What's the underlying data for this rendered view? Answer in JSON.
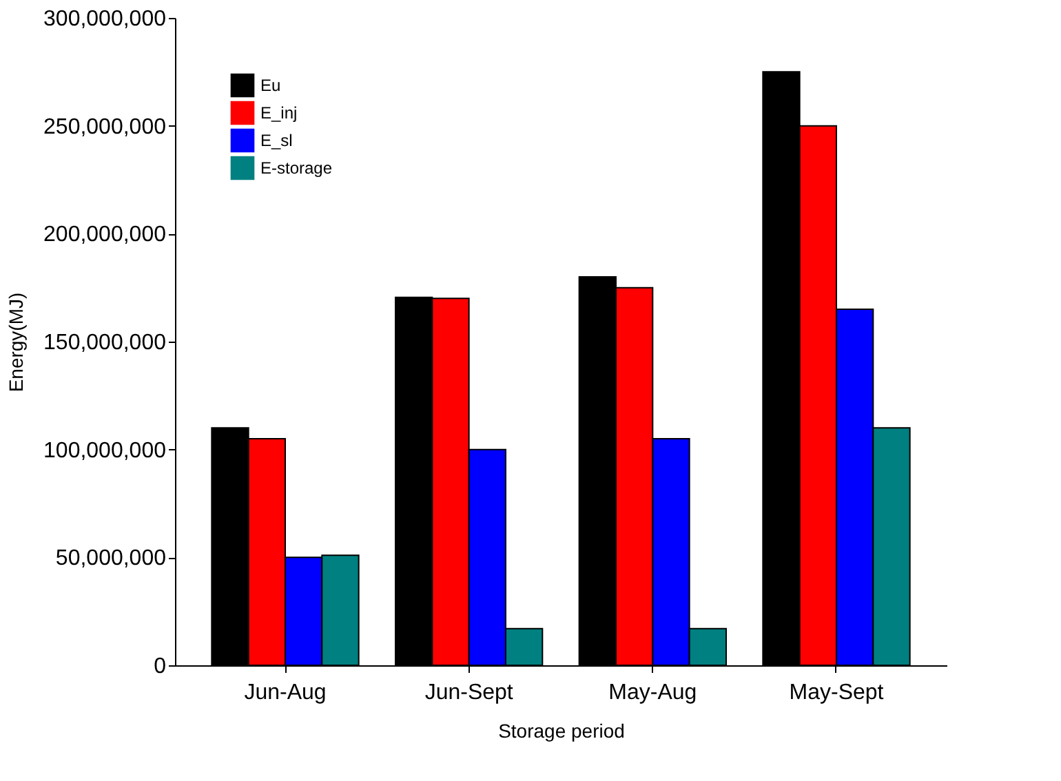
{
  "chart_data": {
    "type": "bar",
    "xlabel": "Storage period",
    "ylabel": "Energy(MJ)",
    "categories": [
      "Jun-Aug",
      "Jun-Sept",
      "May-Aug",
      "May-Sept"
    ],
    "series": [
      {
        "name": "Eu",
        "color": "#000000",
        "values": [
          110000000,
          170500000,
          180000000,
          275000000
        ]
      },
      {
        "name": "E_inj",
        "color": "#ff0000",
        "values": [
          105000000,
          170000000,
          175000000,
          250000000
        ]
      },
      {
        "name": "E_sl",
        "color": "#0000ff",
        "values": [
          50000000,
          100000000,
          105000000,
          165000000
        ]
      },
      {
        "name": "E-storage",
        "color": "#008080",
        "values": [
          51000000,
          17000000,
          17000000,
          110000000
        ]
      }
    ],
    "ylim": [
      0,
      300000000
    ],
    "yticks": [
      0,
      {
        "value": 50000000,
        "label": "50,000,000"
      },
      {
        "value": 100000000,
        "label": "100,000,000"
      },
      {
        "value": 150000000,
        "label": "150,000,000"
      },
      {
        "value": 200000000,
        "label": "200,000,000"
      },
      {
        "value": 250000000,
        "label": "250,000,000"
      },
      {
        "value": 300000000,
        "label": "300,000,000"
      }
    ],
    "grid": false,
    "legend": "top left"
  }
}
